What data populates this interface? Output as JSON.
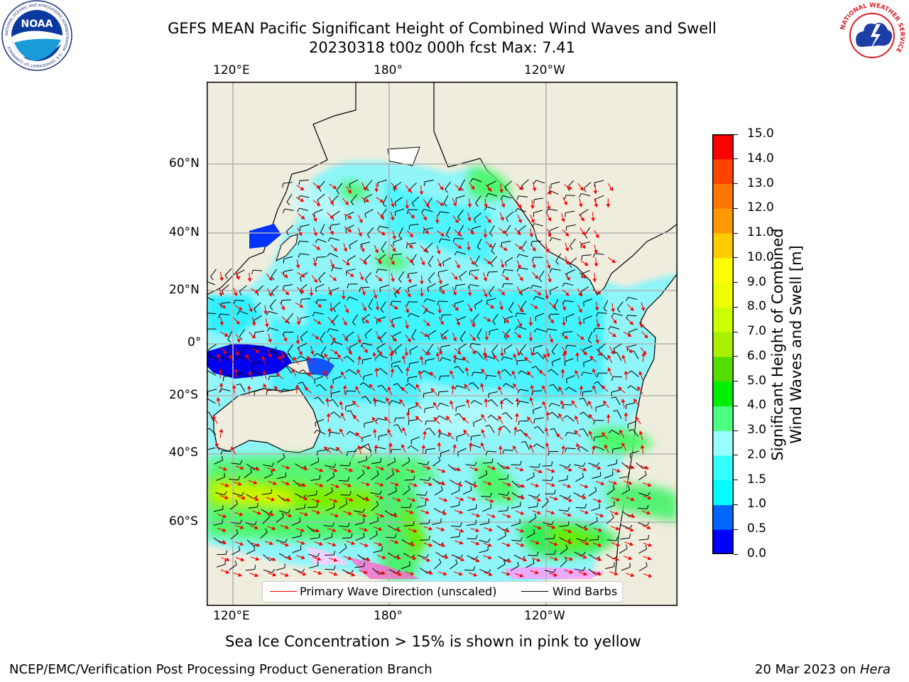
{
  "header": {
    "title_line1": "GEFS MEAN Pacific Significant Height of Combined Wind Waves and Swell",
    "title_line2": "20230318 t00z 000h fcst   Max: 7.41"
  },
  "logos": {
    "left": "NOAA",
    "left_ring_text": "NATIONAL OCEANIC AND ATMOSPHERIC ADMINISTRATION · U.S. DEPARTMENT OF COMMERCE",
    "right_ring_text": "NATIONAL WEATHER SERVICE"
  },
  "map": {
    "lon_ticks_top": [
      "120°E",
      "180°",
      "120°W"
    ],
    "lon_ticks_bottom": [
      "120°E",
      "180°",
      "120°W"
    ],
    "lat_ticks": [
      "60°N",
      "40°N",
      "20°N",
      "0°",
      "20°S",
      "40°S",
      "60°S"
    ],
    "legend": {
      "wave_direction": "Primary Wave Direction (unscaled)",
      "wind_barbs": "Wind Barbs"
    },
    "colors": {
      "land": "#efedde",
      "ocean_missing": "#ffffff",
      "wave_arrow": "#ff0000",
      "barb": "#000000",
      "grid": "#b3b3b3"
    }
  },
  "colorbar": {
    "label_line1": "Significant Height of Combined",
    "label_line2": "Wind Waves and Swell [m]",
    "ticks": [
      "0.0",
      "0.5",
      "1.0",
      "1.5",
      "2.0",
      "3.0",
      "4.0",
      "5.0",
      "6.0",
      "7.0",
      "8.0",
      "9.0",
      "10.0",
      "11.0",
      "12.0",
      "13.0",
      "14.0",
      "15.0"
    ],
    "colors": [
      "#0000ff",
      "#0066ff",
      "#00ffff",
      "#33ffff",
      "#99ffff",
      "#4dff80",
      "#00ee00",
      "#55dd00",
      "#aaee00",
      "#ccff00",
      "#eeff00",
      "#ffff00",
      "#ffcc00",
      "#ff9900",
      "#ff7700",
      "#ff4400",
      "#ff0000"
    ]
  },
  "caption": "Sea Ice Concentration > 15% is shown in pink to yellow",
  "footer": {
    "left": "NCEP/EMC/Verification Post Processing Product Generation Branch",
    "right_prefix": "20 Mar 2023 on ",
    "right_host": "Hera"
  }
}
